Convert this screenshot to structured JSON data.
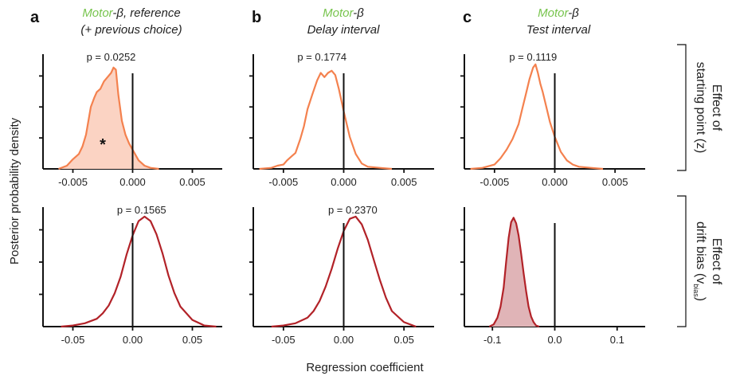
{
  "colors": {
    "orange": "#f4814e",
    "orange_fill": "#fbd3c3",
    "red": "#b22228",
    "red_fill": "#e0b4b7",
    "green": "#77c44d",
    "axis": "#111111"
  },
  "figure": {
    "ylabel": "Posterior probability density",
    "xlabel": "Regression coefficient",
    "side_label_top": {
      "line1": "Effect of",
      "line2": "starting point (z)"
    },
    "side_label_bottom": {
      "line1": "Effect of",
      "line2_prefix": "drift bias (v",
      "line2_sub": "bias",
      "line2_suffix": ")"
    },
    "panels": [
      {
        "letter": "a",
        "title_green": "Motor",
        "title_rest": "-β, reference",
        "title_line2": "(+ previous choice)"
      },
      {
        "letter": "b",
        "title_green": "Motor",
        "title_rest": "-β",
        "title_line2": "Delay interval"
      },
      {
        "letter": "c",
        "title_green": "Motor",
        "title_rest": "-β",
        "title_line2": "Test interval"
      }
    ]
  },
  "chart_data": [
    {
      "type": "area",
      "panel": "a-top",
      "p_label": "p = 0.0252",
      "star": "*",
      "filled": true,
      "xlim": [
        -0.0075,
        0.0075
      ],
      "xticks": [
        -0.005,
        0.0,
        0.005
      ],
      "xticklabels": [
        "-0.005",
        "0.000",
        "0.005"
      ],
      "x": [
        -0.0062,
        -0.0055,
        -0.005,
        -0.0045,
        -0.0042,
        -0.0039,
        -0.0037,
        -0.0035,
        -0.0032,
        -0.003,
        -0.0027,
        -0.0024,
        -0.0021,
        -0.0018,
        -0.0016,
        -0.0014,
        -0.0012,
        -0.0009,
        -0.0006,
        -0.0003,
        0.0,
        0.0005,
        0.001,
        0.0015,
        0.0022
      ],
      "y": [
        0.0,
        0.03,
        0.09,
        0.14,
        0.21,
        0.32,
        0.45,
        0.58,
        0.67,
        0.72,
        0.75,
        0.82,
        0.86,
        0.9,
        0.95,
        0.93,
        0.7,
        0.45,
        0.32,
        0.24,
        0.18,
        0.08,
        0.03,
        0.01,
        0.0
      ]
    },
    {
      "type": "line",
      "panel": "b-top",
      "p_label": "p = 0.1774",
      "filled": false,
      "xlim": [
        -0.0075,
        0.0075
      ],
      "xticks": [
        -0.005,
        0.0,
        0.005
      ],
      "xticklabels": [
        "-0.005",
        "0.000",
        "0.005"
      ],
      "x": [
        -0.007,
        -0.006,
        -0.0055,
        -0.005,
        -0.0047,
        -0.0043,
        -0.004,
        -0.0036,
        -0.0033,
        -0.003,
        -0.0026,
        -0.0022,
        -0.0019,
        -0.0016,
        -0.0013,
        -0.001,
        -0.0007,
        -0.0004,
        0.0,
        0.0005,
        0.001,
        0.0015,
        0.002,
        0.003,
        0.004
      ],
      "y": [
        0.0,
        0.01,
        0.03,
        0.04,
        0.08,
        0.12,
        0.15,
        0.28,
        0.4,
        0.56,
        0.7,
        0.83,
        0.9,
        0.86,
        0.9,
        0.92,
        0.88,
        0.75,
        0.54,
        0.3,
        0.14,
        0.05,
        0.02,
        0.01,
        0.0
      ]
    },
    {
      "type": "line",
      "panel": "c-top",
      "p_label": "p = 0.1119",
      "filled": false,
      "xlim": [
        -0.0075,
        0.0075
      ],
      "xticks": [
        -0.005,
        0.0,
        0.005
      ],
      "xticklabels": [
        "-0.005",
        "0.000",
        "0.005"
      ],
      "x": [
        -0.007,
        -0.006,
        -0.005,
        -0.0045,
        -0.004,
        -0.0035,
        -0.003,
        -0.0027,
        -0.0024,
        -0.0021,
        -0.0018,
        -0.0016,
        -0.0014,
        -0.0012,
        -0.001,
        -0.0007,
        -0.0004,
        0.0,
        0.0005,
        0.001,
        0.0015,
        0.002,
        0.003,
        0.004
      ],
      "y": [
        0.0,
        0.01,
        0.04,
        0.1,
        0.18,
        0.28,
        0.42,
        0.56,
        0.7,
        0.84,
        0.95,
        0.98,
        0.9,
        0.8,
        0.72,
        0.58,
        0.44,
        0.3,
        0.16,
        0.08,
        0.04,
        0.02,
        0.01,
        0.0
      ]
    },
    {
      "type": "line",
      "panel": "a-bottom",
      "p_label": "p = 0.1565",
      "filled": false,
      "xlim": [
        -0.075,
        0.075
      ],
      "xticks": [
        -0.05,
        0.0,
        0.05
      ],
      "xticklabels": [
        "-0.05",
        "0.00",
        "0.05"
      ],
      "x": [
        -0.06,
        -0.05,
        -0.04,
        -0.03,
        -0.025,
        -0.02,
        -0.015,
        -0.01,
        -0.005,
        0.0,
        0.005,
        0.01,
        0.015,
        0.02,
        0.025,
        0.03,
        0.035,
        0.04,
        0.05,
        0.06,
        0.07
      ],
      "y": [
        0.0,
        0.01,
        0.03,
        0.07,
        0.12,
        0.19,
        0.3,
        0.45,
        0.65,
        0.82,
        0.95,
        0.99,
        0.95,
        0.83,
        0.66,
        0.46,
        0.3,
        0.18,
        0.06,
        0.01,
        0.0
      ]
    },
    {
      "type": "line",
      "panel": "b-bottom",
      "p_label": "p = 0.2370",
      "filled": false,
      "xlim": [
        -0.075,
        0.075
      ],
      "xticks": [
        -0.05,
        0.0,
        0.05
      ],
      "xticklabels": [
        "-0.05",
        "0.00",
        "0.05"
      ],
      "x": [
        -0.06,
        -0.05,
        -0.04,
        -0.03,
        -0.025,
        -0.02,
        -0.015,
        -0.01,
        -0.005,
        0.0,
        0.005,
        0.01,
        0.015,
        0.02,
        0.025,
        0.03,
        0.035,
        0.04,
        0.05,
        0.06
      ],
      "y": [
        0.0,
        0.01,
        0.03,
        0.08,
        0.14,
        0.23,
        0.36,
        0.52,
        0.7,
        0.86,
        0.97,
        0.99,
        0.92,
        0.78,
        0.6,
        0.42,
        0.26,
        0.14,
        0.04,
        0.0
      ]
    },
    {
      "type": "area",
      "panel": "c-bottom",
      "p_label": "",
      "filled": true,
      "xlim": [
        -0.145,
        0.145
      ],
      "xticks": [
        -0.1,
        0.0,
        0.1
      ],
      "xticklabels": [
        "-0.1",
        "0.0",
        "0.1"
      ],
      "x": [
        -0.105,
        -0.098,
        -0.092,
        -0.087,
        -0.082,
        -0.078,
        -0.074,
        -0.07,
        -0.066,
        -0.062,
        -0.058,
        -0.054,
        -0.05,
        -0.046,
        -0.042,
        -0.038,
        -0.034,
        -0.03,
        -0.025
      ],
      "y": [
        0.0,
        0.02,
        0.08,
        0.18,
        0.35,
        0.58,
        0.8,
        0.94,
        0.98,
        0.93,
        0.82,
        0.66,
        0.48,
        0.32,
        0.18,
        0.09,
        0.04,
        0.01,
        0.0
      ]
    }
  ]
}
